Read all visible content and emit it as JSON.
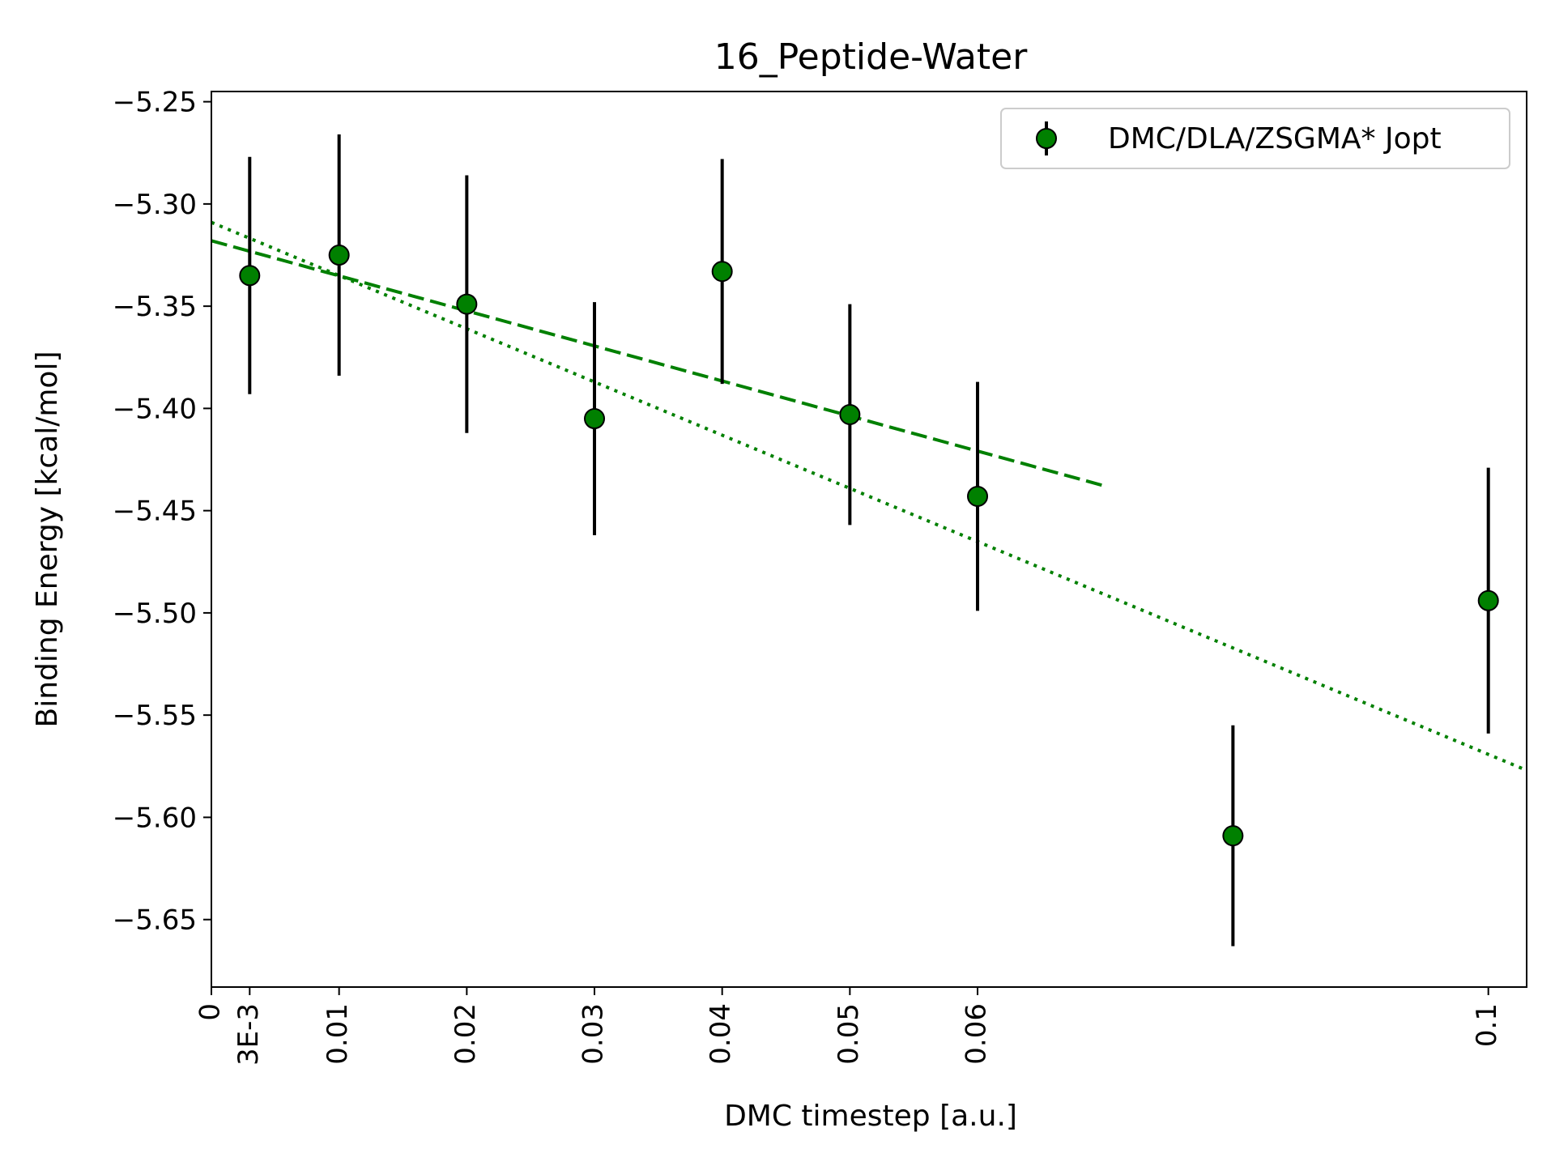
{
  "chart_data": {
    "type": "scatter",
    "title": "16_Peptide-Water",
    "xlabel": "DMC timestep [a.u.]",
    "ylabel": "Binding Energy [kcal/mol]",
    "xlim": [
      0,
      0.103
    ],
    "ylim": [
      -5.683,
      -5.245
    ],
    "x_ticks": [
      {
        "value": 0,
        "label": "0"
      },
      {
        "value": 0.003,
        "label": "3E-3"
      },
      {
        "value": 0.01,
        "label": "0.01"
      },
      {
        "value": 0.02,
        "label": "0.02"
      },
      {
        "value": 0.03,
        "label": "0.03"
      },
      {
        "value": 0.04,
        "label": "0.04"
      },
      {
        "value": 0.05,
        "label": "0.05"
      },
      {
        "value": 0.06,
        "label": "0.06"
      },
      {
        "value": 0.1,
        "label": "0.1"
      }
    ],
    "y_ticks": [
      {
        "value": -5.25,
        "label": "−5.25"
      },
      {
        "value": -5.3,
        "label": "−5.30"
      },
      {
        "value": -5.35,
        "label": "−5.35"
      },
      {
        "value": -5.4,
        "label": "−5.40"
      },
      {
        "value": -5.45,
        "label": "−5.45"
      },
      {
        "value": -5.5,
        "label": "−5.50"
      },
      {
        "value": -5.55,
        "label": "−5.55"
      },
      {
        "value": -5.6,
        "label": "−5.60"
      },
      {
        "value": -5.65,
        "label": "−5.65"
      }
    ],
    "series": [
      {
        "name": "DMC/DLA/ZSGMA* Jopt",
        "color": "#008000",
        "x": [
          0.003,
          0.01,
          0.02,
          0.03,
          0.04,
          0.05,
          0.06,
          0.08,
          0.1
        ],
        "y": [
          -5.335,
          -5.325,
          -5.349,
          -5.405,
          -5.333,
          -5.403,
          -5.443,
          -5.609,
          -5.494
        ],
        "yerr": [
          0.058,
          0.059,
          0.063,
          0.057,
          0.055,
          0.054,
          0.056,
          0.054,
          0.065
        ]
      }
    ],
    "fit_lines": [
      {
        "style": "dashed",
        "color": "#008000",
        "x": [
          0,
          0.07
        ],
        "y": [
          -5.318,
          -5.438
        ]
      },
      {
        "style": "dotted",
        "color": "#008000",
        "x": [
          0,
          0.103
        ],
        "y": [
          -5.309,
          -5.577
        ]
      }
    ],
    "legend": {
      "placement": "top-right"
    },
    "grid": false
  }
}
